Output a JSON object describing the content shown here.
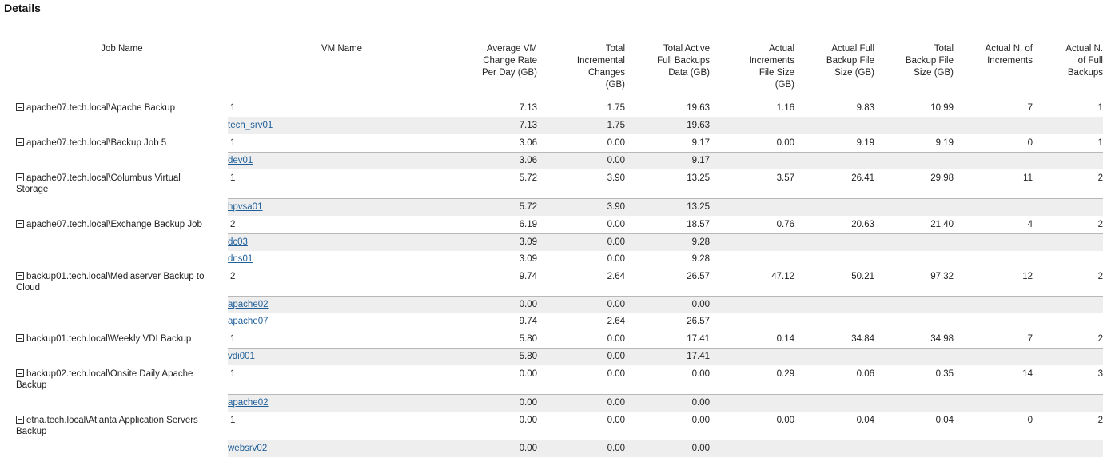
{
  "title": "Details",
  "columns": [
    "Job Name",
    "VM Name",
    "Average VM Change Rate Per Day (GB)",
    "Total Incremental Changes (GB)",
    "Total Active Full Backups Data (GB)",
    "Actual Increments File Size (GB)",
    "Actual Full Backup File Size (GB)",
    "Total Backup File Size (GB)",
    "Actual N. of Increments",
    "Actual N. of Full Backups"
  ],
  "jobs": [
    {
      "name": "apache07.tech.local\\Apache Backup",
      "vms": "1",
      "values": [
        "7.13",
        "1.75",
        "19.63",
        "1.16",
        "9.83",
        "10.99",
        "7",
        "1"
      ],
      "vm_rows": [
        {
          "name": "tech_srv01",
          "values": [
            "7.13",
            "1.75",
            "19.63"
          ]
        }
      ]
    },
    {
      "name": "apache07.tech.local\\Backup Job 5",
      "vms": "1",
      "values": [
        "3.06",
        "0.00",
        "9.17",
        "0.00",
        "9.19",
        "9.19",
        "0",
        "1"
      ],
      "vm_rows": [
        {
          "name": "dev01",
          "values": [
            "3.06",
            "0.00",
            "9.17"
          ]
        }
      ]
    },
    {
      "name": "apache07.tech.local\\Columbus Virtual Storage",
      "vms": "1",
      "values": [
        "5.72",
        "3.90",
        "13.25",
        "3.57",
        "26.41",
        "29.98",
        "11",
        "2"
      ],
      "vm_rows": [
        {
          "name": "hpvsa01",
          "values": [
            "5.72",
            "3.90",
            "13.25"
          ]
        }
      ]
    },
    {
      "name": "apache07.tech.local\\Exchange Backup Job",
      "vms": "2",
      "values": [
        "6.19",
        "0.00",
        "18.57",
        "0.76",
        "20.63",
        "21.40",
        "4",
        "2"
      ],
      "vm_rows": [
        {
          "name": "dc03",
          "values": [
            "3.09",
            "0.00",
            "9.28"
          ]
        },
        {
          "name": "dns01",
          "values": [
            "3.09",
            "0.00",
            "9.28"
          ]
        }
      ]
    },
    {
      "name": "backup01.tech.local\\Mediaserver Backup to Cloud",
      "vms": "2",
      "values": [
        "9.74",
        "2.64",
        "26.57",
        "47.12",
        "50.21",
        "97.32",
        "12",
        "2"
      ],
      "vm_rows": [
        {
          "name": "apache02",
          "values": [
            "0.00",
            "0.00",
            "0.00"
          ]
        },
        {
          "name": "apache07",
          "values": [
            "9.74",
            "2.64",
            "26.57"
          ]
        }
      ]
    },
    {
      "name": "backup01.tech.local\\Weekly VDI Backup",
      "vms": "1",
      "values": [
        "5.80",
        "0.00",
        "17.41",
        "0.14",
        "34.84",
        "34.98",
        "7",
        "2"
      ],
      "vm_rows": [
        {
          "name": "vdi001",
          "values": [
            "5.80",
            "0.00",
            "17.41"
          ]
        }
      ]
    },
    {
      "name": "backup02.tech.local\\Onsite Daily Apache Backup",
      "vms": "1",
      "values": [
        "0.00",
        "0.00",
        "0.00",
        "0.29",
        "0.06",
        "0.35",
        "14",
        "3"
      ],
      "vm_rows": [
        {
          "name": "apache02",
          "values": [
            "0.00",
            "0.00",
            "0.00"
          ]
        }
      ]
    },
    {
      "name": "etna.tech.local\\Atlanta Application Servers Backup",
      "vms": "1",
      "values": [
        "0.00",
        "0.00",
        "0.00",
        "0.00",
        "0.04",
        "0.04",
        "0",
        "2"
      ],
      "vm_rows": [
        {
          "name": "websrv02",
          "values": [
            "0.00",
            "0.00",
            "0.00"
          ]
        }
      ]
    }
  ]
}
